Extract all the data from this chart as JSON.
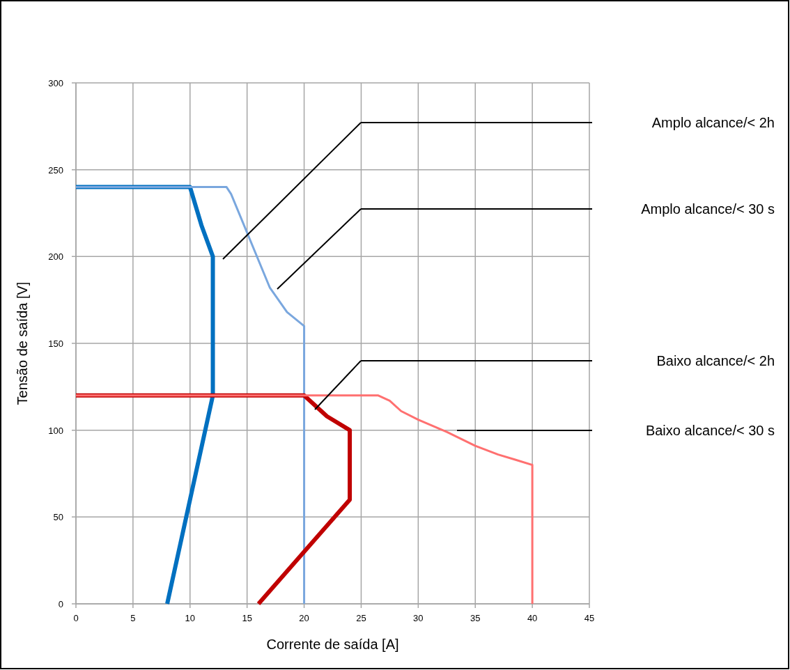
{
  "chart_data": {
    "type": "line",
    "xlabel": "Corrente de saída [A]",
    "ylabel": "Tensão de saída [V]",
    "xlim": [
      0,
      45
    ],
    "xticks": [
      0,
      5,
      10,
      15,
      20,
      25,
      30,
      35,
      40,
      45
    ],
    "ylim": [
      0,
      300
    ],
    "yticks": [
      0,
      50,
      100,
      150,
      200,
      250,
      300
    ],
    "grid": true,
    "line_style": "solid",
    "series": [
      {
        "color": "#0070c0",
        "x": [
          0,
          10,
          11,
          12,
          12,
          8
        ],
        "values": [
          240,
          240,
          218,
          200,
          120,
          0
        ]
      },
      {
        "color": "#7aa7de",
        "x": [
          0,
          13.2,
          13.6,
          17,
          18.5,
          20,
          20
        ],
        "values": [
          240,
          240,
          236,
          182,
          168,
          160,
          0
        ]
      },
      {
        "color": "#c00000",
        "x": [
          0,
          20,
          21,
          22,
          24,
          24,
          16
        ],
        "values": [
          120,
          120,
          114,
          108,
          100,
          60,
          0
        ]
      },
      {
        "color": "#ff7070",
        "x": [
          0,
          26.5,
          27.5,
          28.5,
          30,
          32.5,
          35,
          37,
          38.5,
          40,
          40
        ],
        "values": [
          120,
          120,
          117,
          111,
          106,
          99,
          91,
          86,
          83,
          80,
          0
        ]
      }
    ],
    "annotations": [
      "Amplo alcance/< 2h",
      "Amplo alcance/< 30 s",
      "Baixo alcance/< 2h",
      "Baixo alcance/< 30 s"
    ]
  }
}
